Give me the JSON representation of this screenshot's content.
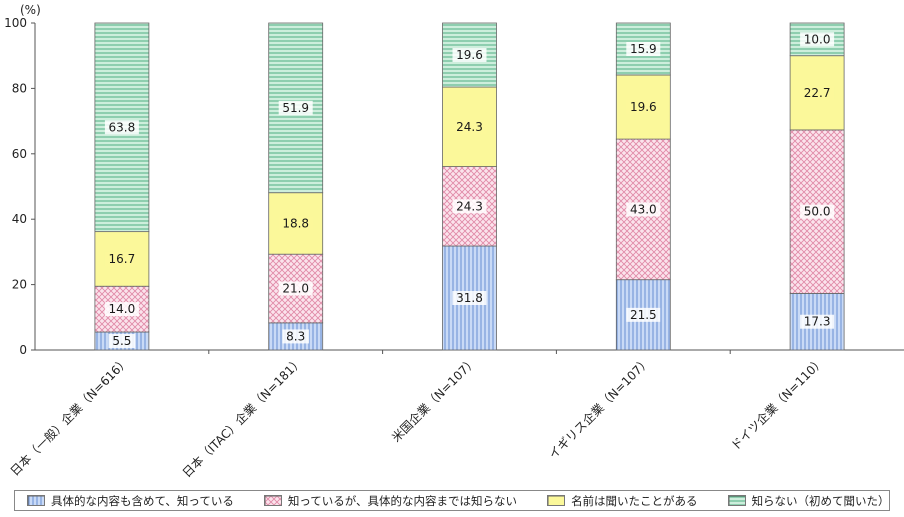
{
  "chart_data": {
    "type": "bar",
    "stacked": true,
    "unit_label": "(%)",
    "ylim": [
      0,
      100
    ],
    "yticks": [
      0,
      20,
      40,
      60,
      80,
      100
    ],
    "grid": false,
    "legend_position": "bottom",
    "categories": [
      "日本（一般）企業（N=616）",
      "日本（ITAC）企業（N=181）",
      "米国企業（N=107）",
      "イギリス企業（N=107）",
      "ドイツ企業（N=110）"
    ],
    "series": [
      {
        "name": "具体的な内容も含めて、知っている",
        "color": "#a9c4ee",
        "pattern": "vertical-lines",
        "values": [
          5.5,
          8.3,
          31.8,
          21.5,
          17.3
        ],
        "labels": [
          "5.5",
          "8.3",
          "31.8",
          "21.5",
          "17.3"
        ]
      },
      {
        "name": "知っているが、具体的な内容までは知らない",
        "color": "#f7c6d6",
        "pattern": "crosshatch",
        "values": [
          14.0,
          21.0,
          24.3,
          43.0,
          50.0
        ],
        "labels": [
          "14.0",
          "21.0",
          "24.3",
          "43.0",
          "50.0"
        ]
      },
      {
        "name": "名前は聞いたことがある",
        "color": "#fbf89a",
        "pattern": "solid",
        "values": [
          16.7,
          18.8,
          24.3,
          19.6,
          22.7
        ],
        "labels": [
          "16.7",
          "18.8",
          "24.3",
          "19.6",
          "22.7"
        ]
      },
      {
        "name": "知らない（初めて聞いた）",
        "color": "#9ed9bd",
        "pattern": "horizontal-lines",
        "values": [
          63.8,
          51.9,
          19.6,
          15.9,
          10.0
        ],
        "labels": [
          "63.8",
          "51.9",
          "19.6",
          "15.9",
          "10.0"
        ]
      }
    ]
  }
}
